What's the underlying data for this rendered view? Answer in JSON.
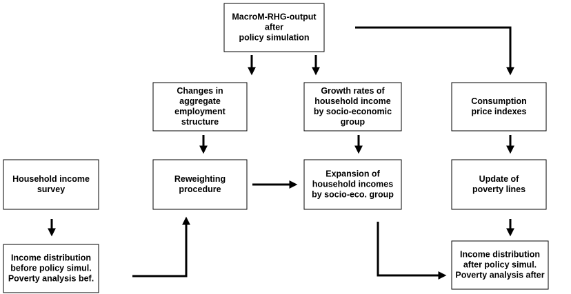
{
  "nodes": [
    {
      "lines": [
        "MacroM-RHG-output",
        "after",
        "policy simulation"
      ]
    },
    {
      "lines": [
        "Changes in",
        "aggregate",
        "employment",
        "structure"
      ]
    },
    {
      "lines": [
        "Growth rates of",
        "household income",
        "by socio-economic",
        "group"
      ]
    },
    {
      "lines": [
        "Consumption",
        "price indexes"
      ]
    },
    {
      "lines": [
        "Household income",
        "survey"
      ]
    },
    {
      "lines": [
        "Reweighting",
        "procedure"
      ]
    },
    {
      "lines": [
        "Expansion of",
        "household incomes",
        "by socio-eco. group"
      ]
    },
    {
      "lines": [
        "Update of",
        "poverty lines"
      ]
    },
    {
      "lines": [
        "Income distribution",
        "before policy simul.",
        "Poverty analysis bef."
      ]
    },
    {
      "lines": [
        "Income distribution",
        "after policy simul.",
        "Poverty analysis after"
      ]
    }
  ]
}
